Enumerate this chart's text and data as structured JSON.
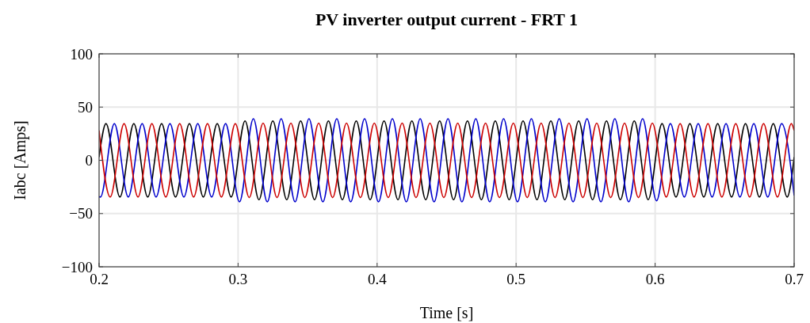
{
  "chart_data": {
    "type": "line",
    "title": "PV inverter output current - FRT 1",
    "xlabel": "Time [s]",
    "ylabel": "Iabc [Amps]",
    "xlim": [
      0.2,
      0.7
    ],
    "xticks": [
      0.2,
      0.3,
      0.4,
      0.5,
      0.6,
      0.7
    ],
    "ylim": [
      -100,
      100
    ],
    "yticks": [
      {
        "value": -100,
        "label": "−100"
      },
      {
        "value": -50,
        "label": "−50"
      },
      0,
      50,
      100
    ],
    "grid": true,
    "marker": "none",
    "line_style": "solid",
    "series": [
      {
        "color": "#000000",
        "x": [
          0.2,
          0.205,
          0.215,
          0.225,
          0.235,
          0.245,
          0.255,
          0.265,
          0.275,
          0.285,
          0.295,
          0.305,
          0.315,
          0.325,
          0.335,
          0.345,
          0.355,
          0.365,
          0.375,
          0.385,
          0.395,
          0.405,
          0.415,
          0.425,
          0.435,
          0.445,
          0.455,
          0.465,
          0.475,
          0.485,
          0.495,
          0.505,
          0.515,
          0.525,
          0.535,
          0.545,
          0.555,
          0.565,
          0.575,
          0.585,
          0.595,
          0.605,
          0.615,
          0.625,
          0.635,
          0.645,
          0.655,
          0.665,
          0.675,
          0.685,
          0.695,
          0.7
        ],
        "values": [
          3,
          34.5,
          -34.5,
          34.5,
          -34.5,
          34.5,
          -34.5,
          34.5,
          -34.5,
          34.5,
          -34.5,
          37,
          -37,
          37,
          -37,
          37,
          -37,
          37,
          -37,
          37,
          -37,
          37,
          -37,
          37,
          -37,
          37,
          -37,
          37,
          -37,
          37,
          -37,
          37,
          -37,
          37,
          -37,
          37,
          -37,
          37,
          -37,
          37,
          -37,
          34.5,
          -34.5,
          34.5,
          -34.5,
          34.5,
          -34.5,
          34.5,
          -34.5,
          34.5,
          -34.5,
          3
        ]
      },
      {
        "color": "#0000cc",
        "x": [
          0.2,
          0.201,
          0.211,
          0.221,
          0.231,
          0.241,
          0.251,
          0.261,
          0.271,
          0.281,
          0.291,
          0.301,
          0.311,
          0.321,
          0.331,
          0.341,
          0.351,
          0.361,
          0.371,
          0.381,
          0.391,
          0.401,
          0.411,
          0.421,
          0.431,
          0.441,
          0.451,
          0.461,
          0.471,
          0.481,
          0.491,
          0.501,
          0.511,
          0.521,
          0.531,
          0.541,
          0.551,
          0.561,
          0.571,
          0.581,
          0.591,
          0.601,
          0.611,
          0.621,
          0.631,
          0.641,
          0.651,
          0.661,
          0.671,
          0.681,
          0.691,
          0.7
        ],
        "values": [
          -34,
          -34.5,
          34.5,
          -34.5,
          34.5,
          -34.5,
          34.5,
          -34.5,
          34.5,
          -34.5,
          34.5,
          -39,
          39,
          -39,
          39,
          -39,
          39,
          -39,
          39,
          -39,
          39,
          -39,
          39,
          -39,
          39,
          -39,
          39,
          -39,
          39,
          -39,
          39,
          -39,
          39,
          -39,
          39,
          -39,
          39,
          -39,
          39,
          -39,
          39,
          -38,
          34.5,
          -34.5,
          34.5,
          -34.5,
          34.5,
          -34.5,
          34.5,
          -34.5,
          34.5,
          -33
        ]
      },
      {
        "color": "#cc0000",
        "x": [
          0.2,
          0.208,
          0.218,
          0.228,
          0.238,
          0.248,
          0.258,
          0.268,
          0.278,
          0.288,
          0.298,
          0.308,
          0.318,
          0.328,
          0.338,
          0.348,
          0.358,
          0.368,
          0.378,
          0.388,
          0.398,
          0.408,
          0.418,
          0.428,
          0.438,
          0.448,
          0.458,
          0.468,
          0.478,
          0.488,
          0.498,
          0.508,
          0.518,
          0.528,
          0.538,
          0.548,
          0.558,
          0.568,
          0.578,
          0.588,
          0.598,
          0.608,
          0.618,
          0.628,
          0.638,
          0.648,
          0.658,
          0.668,
          0.678,
          0.688,
          0.698,
          0.7
        ],
        "values": [
          28,
          -34.5,
          34.5,
          -34.5,
          34.5,
          -34.5,
          34.5,
          -34.5,
          34.5,
          -34.5,
          34.5,
          -35,
          35,
          -35,
          35,
          -35,
          35,
          -35,
          35,
          -35,
          35,
          -35,
          35,
          -35,
          35,
          -35,
          35,
          -35,
          35,
          -35,
          35,
          -35,
          35,
          -35,
          35,
          -35,
          35,
          -35,
          35,
          -35,
          35,
          -34.5,
          34.5,
          -34.5,
          34.5,
          -34.5,
          34.5,
          -34.5,
          34.5,
          -34.5,
          34.5,
          28
        ]
      }
    ]
  }
}
